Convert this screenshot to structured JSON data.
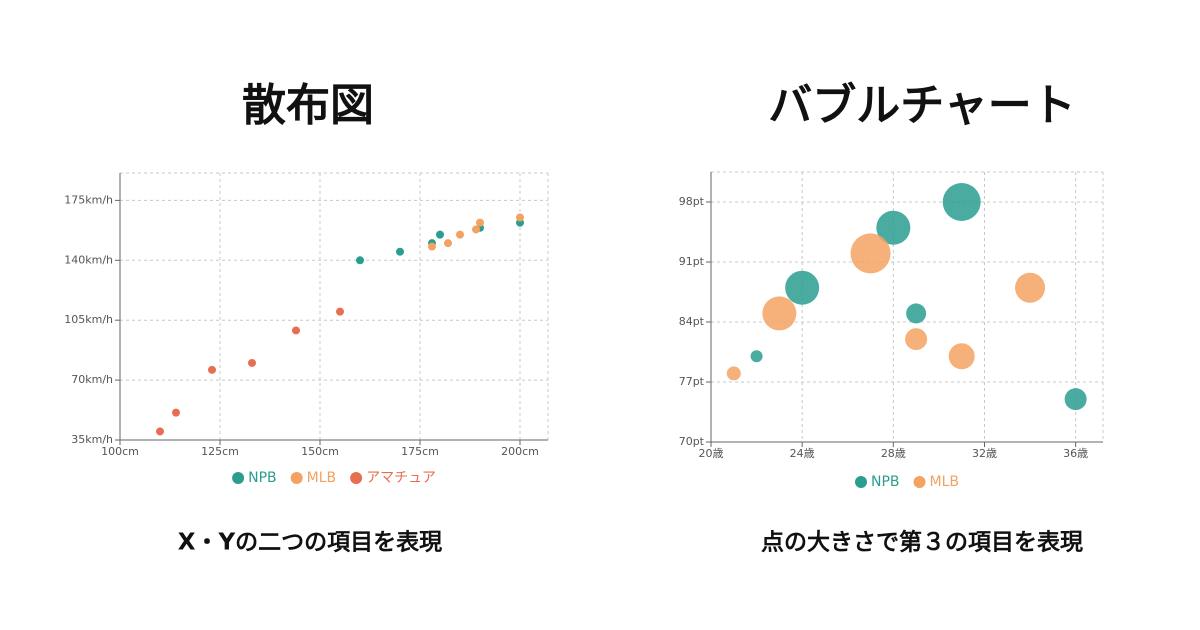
{
  "chart_data": [
    {
      "type": "scatter",
      "title": "散布図",
      "caption": "X・Yの二つの項目を表現",
      "xlim": [
        100,
        207
      ],
      "ylim": [
        35,
        191
      ],
      "xticks": [
        {
          "value": 100,
          "label": "100cm"
        },
        {
          "value": 125,
          "label": "125cm"
        },
        {
          "value": 150,
          "label": "150cm"
        },
        {
          "value": 175,
          "label": "175cm"
        },
        {
          "value": 200,
          "label": "200cm"
        }
      ],
      "yticks": [
        {
          "value": 35,
          "label": "35km/h"
        },
        {
          "value": 70,
          "label": "70km/h"
        },
        {
          "value": 105,
          "label": "105km/h"
        },
        {
          "value": 140,
          "label": "140km/h"
        },
        {
          "value": 175,
          "label": "175km/h"
        }
      ],
      "grid": true,
      "series": [
        {
          "name": "NPB",
          "color": "#2a9d8f",
          "x": [
            160,
            170,
            178,
            180,
            190,
            200
          ],
          "values": [
            140,
            145,
            150,
            155,
            159,
            162
          ]
        },
        {
          "name": "MLB",
          "color": "#f4a261",
          "x": [
            178,
            182,
            185,
            189,
            190,
            200
          ],
          "values": [
            148,
            150,
            155,
            158,
            162,
            165
          ]
        },
        {
          "name": "アマチュア",
          "color": "#e76f51",
          "x": [
            110,
            114,
            123,
            133,
            144,
            155
          ],
          "values": [
            40,
            51,
            76,
            80,
            99,
            110
          ]
        }
      ]
    },
    {
      "type": "bubble",
      "title": "バブルチャート",
      "caption": "点の大きさで第３の項目を表現",
      "xlim": [
        20,
        37.2
      ],
      "ylim": [
        70,
        101.5
      ],
      "xticks": [
        {
          "value": 20,
          "label": "20歳"
        },
        {
          "value": 24,
          "label": "24歳"
        },
        {
          "value": 28,
          "label": "28歳"
        },
        {
          "value": 32,
          "label": "32歳"
        },
        {
          "value": 36,
          "label": "36歳"
        }
      ],
      "yticks": [
        {
          "value": 70,
          "label": "70pt"
        },
        {
          "value": 77,
          "label": "77pt"
        },
        {
          "value": 84,
          "label": "84pt"
        },
        {
          "value": 91,
          "label": "91pt"
        },
        {
          "value": 98,
          "label": "98pt"
        }
      ],
      "grid": true,
      "series": [
        {
          "name": "NPB",
          "color": "#2a9d8f",
          "x": [
            22,
            24,
            28,
            29,
            31,
            36
          ],
          "values": [
            80,
            88,
            95,
            85,
            98,
            75
          ],
          "sizes": [
            6,
            17,
            17,
            10,
            19,
            11
          ]
        },
        {
          "name": "MLB",
          "color": "#f4a261",
          "x": [
            21,
            23,
            27,
            29,
            31,
            34
          ],
          "values": [
            78,
            85,
            92,
            82,
            80,
            88
          ],
          "sizes": [
            7,
            17,
            20,
            11,
            13,
            15
          ]
        }
      ]
    }
  ]
}
